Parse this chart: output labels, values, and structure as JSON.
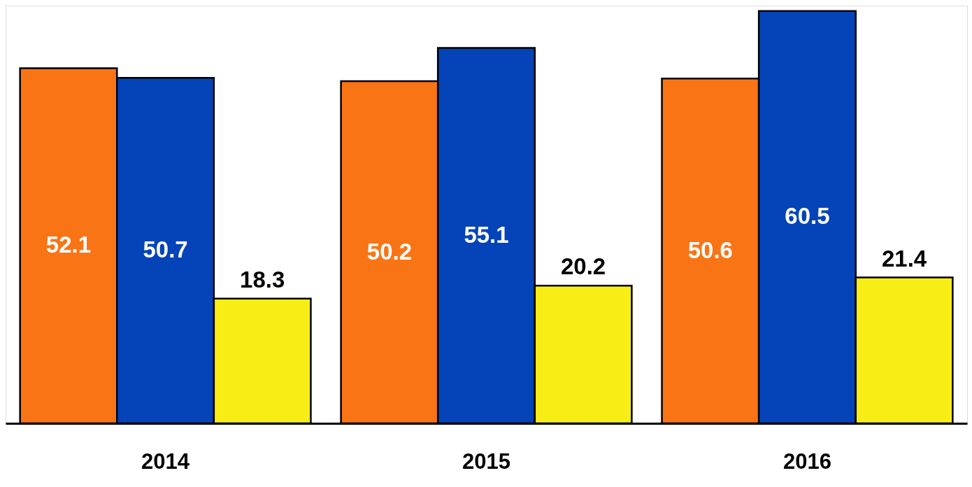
{
  "chart_data": {
    "type": "bar",
    "categories": [
      "2014",
      "2015",
      "2016"
    ],
    "series": [
      {
        "color": "#f97415",
        "values": [
          52.1,
          50.2,
          50.6
        ]
      },
      {
        "color": "#0444b8",
        "values": [
          50.7,
          55.1,
          60.5
        ]
      },
      {
        "color": "#f8ee16",
        "values": [
          18.3,
          20.2,
          21.4
        ]
      }
    ],
    "ylim": [
      0,
      61.3
    ],
    "data_labels": true,
    "grid": false,
    "legend": false,
    "tick_labels": "x"
  }
}
